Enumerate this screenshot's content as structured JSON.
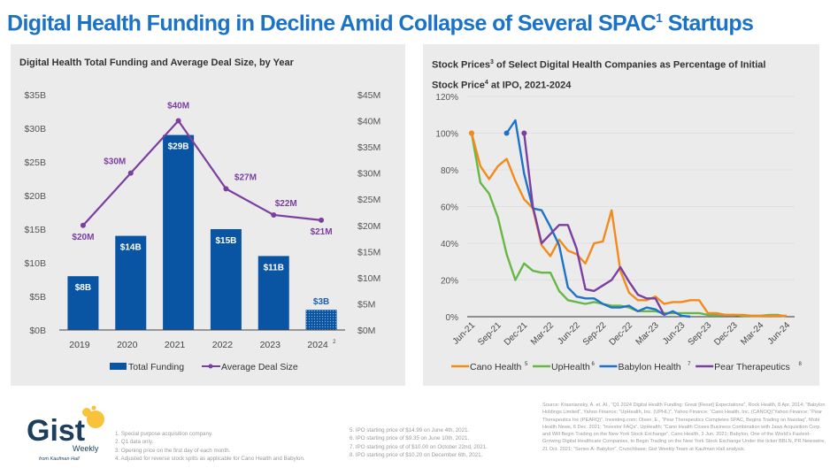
{
  "title": {
    "main": "Digital Health Funding in Decline Amid Collapse of Several SPAC",
    "sup": "1",
    "tail": " Startups"
  },
  "left_panel": {
    "title": "Digital Health Total Funding and Average Deal Size, by Year"
  },
  "right_panel": {
    "title_a": "Stock Prices",
    "sup_a": "3",
    "title_b": " of Select Digital Health Companies as Percentage of Initial",
    "title_c": "Stock Price",
    "sup_c": "4",
    "title_d": " at IPO, 2021-2024"
  },
  "colors": {
    "title_blue": "#1a73c8",
    "bar_blue": "#0a55a3",
    "deal_purple": "#7b3fa0",
    "cano": "#f28a1c",
    "uphealth": "#66b846",
    "babylon": "#1e73c8",
    "pear": "#7b3fa0"
  },
  "chart_data": [
    {
      "type": "bar",
      "title": "Digital Health Total Funding and Average Deal Size, by Year",
      "categories": [
        "2019",
        "2020",
        "2021",
        "2022",
        "2023",
        "2024"
      ],
      "category_superscripts": [
        "",
        "",
        "",
        "",
        "",
        "2"
      ],
      "series": [
        {
          "name": "Total Funding",
          "axis": "left",
          "kind": "bar",
          "values": [
            8,
            14,
            29,
            15,
            11,
            3
          ],
          "labels": [
            "$8B",
            "$14B",
            "$29B",
            "$15B",
            "$11B",
            "$3B"
          ],
          "patterned_last": true
        },
        {
          "name": "Average Deal Size",
          "axis": "right",
          "kind": "line",
          "values": [
            20,
            30,
            40,
            27,
            22,
            21
          ],
          "labels": [
            "$20M",
            "$30M",
            "$40M",
            "$27M",
            "$22M",
            "$21M"
          ]
        }
      ],
      "left_axis": {
        "ticks": [
          "$0B",
          "$5B",
          "$10B",
          "$15B",
          "$20B",
          "$25B",
          "$30B",
          "$35B"
        ],
        "ylim": [
          0,
          35
        ]
      },
      "right_axis": {
        "ticks": [
          "$0M",
          "$5M",
          "$10M",
          "$15M",
          "$20M",
          "$25M",
          "$30M",
          "$35M",
          "$40M",
          "$45M"
        ],
        "ylim": [
          0,
          45
        ]
      },
      "legend": {
        "position": "bottom",
        "items": [
          "Total Funding",
          "Average Deal Size"
        ]
      },
      "grid": false
    },
    {
      "type": "line",
      "title": "Stock Prices of Select Digital Health Companies as Percentage of Initial Stock Price at IPO, 2021-2024",
      "x_ticks": [
        "Jun-21",
        "Sep-21",
        "Dec-21",
        "Mar-22",
        "Jun-22",
        "Sep-22",
        "Dec-22",
        "Mar-23",
        "Jun-23",
        "Sep-23",
        "Dec-23",
        "Mar-24",
        "Jun-24"
      ],
      "x_unit": "months since Jun-21",
      "xlim": [
        0,
        36
      ],
      "y_ticks": [
        "0%",
        "20%",
        "40%",
        "60%",
        "80%",
        "100%",
        "120%"
      ],
      "ylim": [
        0,
        120
      ],
      "grid": true,
      "legend": {
        "position": "bottom",
        "items": [
          {
            "name": "Cano Health",
            "sup": "5"
          },
          {
            "name": "UpHealth",
            "sup": "6"
          },
          {
            "name": "Babylon Health",
            "sup": "7"
          },
          {
            "name": "Pear Therapeutics",
            "sup": "8"
          }
        ]
      },
      "series": [
        {
          "name": "Cano Health",
          "x": [
            0,
            1,
            2,
            3,
            4,
            5,
            6,
            7,
            8,
            9,
            10,
            11,
            12,
            13,
            14,
            15,
            16,
            17,
            18,
            19,
            20,
            21,
            22,
            23,
            24,
            25,
            26,
            27,
            28,
            29,
            30,
            31,
            32,
            33,
            34,
            35,
            36
          ],
          "values": [
            100,
            82,
            75,
            82,
            86,
            74,
            64,
            59,
            39,
            33,
            42,
            36,
            34,
            29,
            40,
            41,
            58,
            25,
            13,
            9,
            9,
            11,
            7,
            8,
            8,
            9,
            9,
            2,
            2,
            1,
            1,
            1,
            0.5,
            0.5,
            0.5,
            0.5,
            0.5
          ]
        },
        {
          "name": "UpHealth",
          "x": [
            0,
            1,
            2,
            3,
            4,
            5,
            6,
            7,
            8,
            9,
            10,
            11,
            12,
            13,
            14,
            15,
            16,
            17,
            18,
            19,
            20,
            21,
            22,
            23,
            24,
            25,
            26,
            27,
            28,
            29,
            30,
            31,
            32,
            33,
            34,
            35,
            36
          ],
          "values": [
            100,
            73,
            67,
            54,
            34,
            20,
            29,
            25,
            24,
            24,
            14,
            9,
            8,
            7,
            8,
            7,
            6,
            6,
            5,
            3,
            3,
            3,
            2,
            2,
            2,
            2,
            2,
            1,
            1,
            1,
            1,
            0.5,
            0.5,
            0.5,
            1,
            1,
            0
          ]
        },
        {
          "name": "Babylon Health",
          "x": [
            4,
            5,
            6,
            7,
            8,
            9,
            10,
            11,
            12,
            13,
            14,
            15,
            16,
            17,
            18,
            19,
            20,
            21,
            22,
            23,
            24,
            25
          ],
          "values": [
            100,
            107,
            78,
            59,
            58,
            49,
            39,
            16,
            11,
            10,
            10,
            7,
            5,
            5,
            6,
            3,
            5,
            4,
            1,
            3,
            0.5,
            0
          ]
        },
        {
          "name": "Pear Therapeutics",
          "x": [
            6,
            7,
            8,
            9,
            10,
            11,
            12,
            13,
            14,
            15,
            16,
            17,
            18,
            19,
            20,
            21,
            22
          ],
          "values": [
            100,
            60,
            40,
            45,
            50,
            50,
            37,
            15,
            14,
            17,
            20,
            27,
            19,
            12,
            10,
            10,
            1
          ]
        }
      ]
    }
  ],
  "footnotes_left": [
    "1.  Special purpose acquisition company.",
    "2.  Q1 data only.",
    "3.  Opening price on the first day of each month.",
    "4.  Adjusted for reverse stock splits as applicable for Cano Health and Babylon."
  ],
  "footnotes_mid": [
    "5. IPO starting price of $14.99 on June 4th, 2021.",
    "6. IPO starting price of $9.35 on June 10th, 2021.",
    "7. IPO starting price of of $10.00 on October 22nd, 2021.",
    "8. IPO starting price of $10.20 on December 6th, 2021."
  ],
  "source": "Source: Krasniansky, A. et. Al., “Q1 2024 Digital Health Funding: Great [Reset] Expectations”, Rock Health, 8 Apr. 2014; “Babylon Holdings Limited”, Yahoo Finance; “UpHealth, Inc. (UPHL)”, Yahoo Finance; “Cano Health, Inc. (CANOQ)”Yahoo Finance; “Pear Therapeutics Inc (PEARQ)”, Investing.com; Olsen, E., “Pear Therapeutics Completes SPAC, Begins Trading on Nasdaq”, Mobi Health News, 6 Dec. 2021; “Investor FAQs”, UpHealth; “Cano Health Closes Business Combination with Jaws Acquisition Corp. and Will Begin Trading on the New York Stock Exchange”, Cano Health, 3 Jun. 2021; Babylon, One of the World’s Fastest-Growing Digital Healthcare Companies, to Begin Trading on the New York Stock Exchange Under the ticker BBLN, PR Newswire, 21 Oct. 2021; “Series A- Babylon”, Crunchbase; Gist Weekly Team at Kaufman Hall analysis.",
  "logo": {
    "word": "Gist",
    "sub": "Weekly",
    "byline": "from Kaufman Hall"
  }
}
